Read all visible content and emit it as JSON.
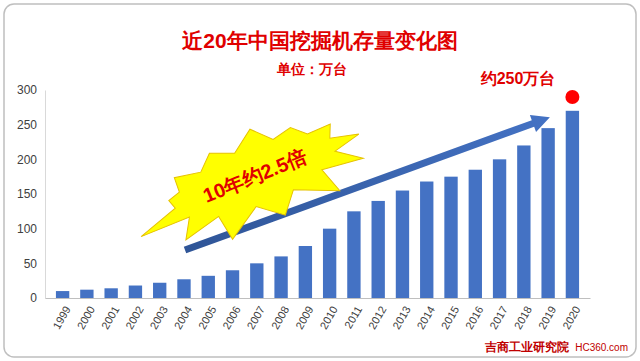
{
  "chart_data": {
    "type": "bar",
    "title": "近20年中国挖掘机存量变化图",
    "subtitle": "单位：万台",
    "annotations": [
      "约250万台",
      "10年约2.5倍",
      "吉商工业研究院",
      "HC360.com"
    ],
    "categories": [
      "1999",
      "2000",
      "2001",
      "2002",
      "2003",
      "2004",
      "2005",
      "2006",
      "2007",
      "2008",
      "2009",
      "2010",
      "2011",
      "2012",
      "2013",
      "2014",
      "2015",
      "2016",
      "2017",
      "2018",
      "2019",
      "2020"
    ],
    "values": [
      10,
      12,
      14,
      18,
      22,
      27,
      32,
      40,
      50,
      60,
      75,
      100,
      125,
      140,
      155,
      168,
      175,
      185,
      200,
      220,
      245,
      270
    ],
    "color": "#4472c4",
    "ylim": [
      0,
      300
    ],
    "yticks": [
      0,
      50,
      100,
      150,
      200,
      250,
      300
    ],
    "grid": false
  }
}
